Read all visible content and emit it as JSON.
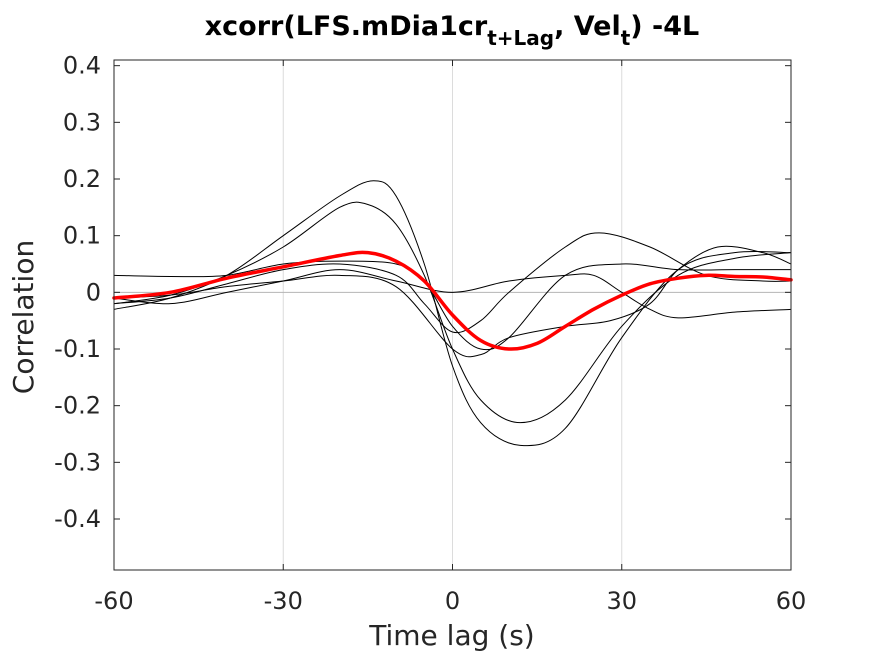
{
  "chart_data": {
    "type": "line",
    "title": {
      "prefix": "xcorr(LFS.mDia1cr",
      "sub1": "t+Lag",
      "middle": ", Vel",
      "sub2": "t",
      "suffix": ") -4L"
    },
    "xlabel": "Time lag (s)",
    "ylabel": "Correlation",
    "xlim": [
      -60,
      60
    ],
    "ylim": [
      -0.49,
      0.41
    ],
    "xticks": [
      -60,
      -30,
      0,
      30,
      60
    ],
    "xtick_labels": [
      "-60",
      "-30",
      "0",
      "30",
      "60"
    ],
    "yticks": [
      0.4,
      0.3,
      0.2,
      0.1,
      0,
      -0.1,
      -0.2,
      -0.3,
      -0.4
    ],
    "ytick_labels": [
      "0.4",
      "0.3",
      "0.2",
      "0.1",
      "0",
      "-0.1",
      "-0.2",
      "-0.3",
      "-0.4"
    ],
    "grid": "vertical",
    "zero_line": true,
    "colors": {
      "individual": "#000000",
      "mean": "#ff0000",
      "axes": "#262626",
      "grid": "#dcdcdc"
    },
    "series": [
      {
        "role": "individual",
        "x": [
          -60,
          -50,
          -40,
          -30,
          -20,
          -15,
          -10,
          -5,
          0,
          5,
          12,
          20,
          30,
          40,
          50,
          60
        ],
        "y": [
          -0.02,
          -0.005,
          0.03,
          0.08,
          0.15,
          0.155,
          0.12,
          0.03,
          -0.1,
          -0.19,
          -0.23,
          -0.19,
          -0.06,
          0.03,
          0.06,
          0.07
        ]
      },
      {
        "role": "individual",
        "x": [
          -60,
          -50,
          -40,
          -30,
          -20,
          -14,
          -10,
          -5,
          0,
          5,
          12,
          20,
          30,
          40,
          50,
          60
        ],
        "y": [
          -0.03,
          -0.01,
          0.03,
          0.1,
          0.17,
          0.197,
          0.17,
          0.05,
          -0.13,
          -0.23,
          -0.27,
          -0.24,
          -0.08,
          0.04,
          0.07,
          0.07
        ]
      },
      {
        "role": "individual",
        "x": [
          -60,
          -50,
          -40,
          -30,
          -20,
          -10,
          -5,
          0,
          5,
          10,
          20,
          26,
          35,
          45,
          55,
          60
        ],
        "y": [
          -0.02,
          -0.01,
          0.015,
          0.04,
          0.05,
          0.03,
          -0.02,
          -0.07,
          -0.05,
          0.0,
          0.08,
          0.105,
          0.08,
          0.03,
          0.02,
          0.02
        ]
      },
      {
        "role": "individual",
        "x": [
          -60,
          -50,
          -40,
          -30,
          -20,
          -10,
          0,
          5,
          10,
          20,
          28,
          35,
          40,
          47,
          55,
          60
        ],
        "y": [
          -0.01,
          -0.005,
          0.01,
          0.02,
          0.03,
          0.01,
          -0.1,
          -0.11,
          -0.08,
          -0.06,
          -0.05,
          -0.02,
          0.04,
          0.08,
          0.07,
          0.05
        ]
      },
      {
        "role": "individual",
        "x": [
          -60,
          -50,
          -40,
          -30,
          -20,
          -10,
          -5,
          0,
          5,
          10,
          20,
          30,
          40,
          50,
          60
        ],
        "y": [
          0.03,
          0.028,
          0.03,
          0.05,
          0.055,
          0.05,
          0.02,
          -0.06,
          -0.1,
          -0.08,
          0.03,
          0.05,
          0.04,
          0.04,
          0.04
        ]
      },
      {
        "role": "individual",
        "x": [
          -60,
          -50,
          -40,
          -30,
          -20,
          -10,
          0,
          10,
          20,
          25,
          30,
          35,
          40,
          50,
          60
        ],
        "y": [
          -0.01,
          -0.02,
          0.0,
          0.02,
          0.04,
          0.02,
          0.0,
          0.02,
          0.03,
          0.03,
          0.0,
          -0.03,
          -0.045,
          -0.035,
          -0.03
        ]
      },
      {
        "role": "mean",
        "x": [
          -60,
          -50,
          -40,
          -30,
          -20,
          -15,
          -10,
          -5,
          0,
          5,
          10,
          15,
          20,
          25,
          30,
          35,
          40,
          45,
          50,
          55,
          60
        ],
        "y": [
          -0.01,
          0.0,
          0.025,
          0.045,
          0.065,
          0.07,
          0.055,
          0.02,
          -0.04,
          -0.085,
          -0.1,
          -0.09,
          -0.06,
          -0.03,
          -0.005,
          0.015,
          0.025,
          0.03,
          0.028,
          0.027,
          0.022
        ]
      }
    ]
  }
}
